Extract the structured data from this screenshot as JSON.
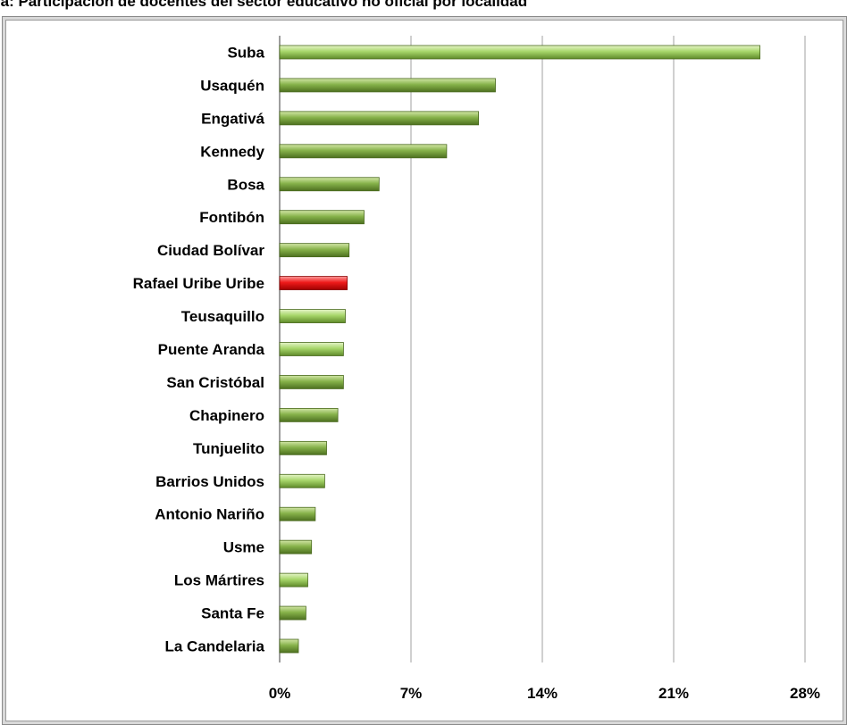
{
  "title": "ra: Participación de docentes del sector educativo no oficial por localidad",
  "colors": {
    "bar_light": "#93c750",
    "bar_dark": "#6f9a3a",
    "bar_highlight": "#e01010",
    "grid": "#a0a0a0"
  },
  "chart_data": {
    "type": "bar",
    "orientation": "horizontal",
    "title": "ra: Participación de docentes del sector educativo no oficial por localidad",
    "categories": [
      "Suba",
      "Usaquén",
      "Engativá",
      "Kennedy",
      "Bosa",
      "Fontibón",
      "Ciudad Bolívar",
      "Rafael Uribe Uribe",
      "Teusaquillo",
      "Puente Aranda",
      "San Cristóbal",
      "Chapinero",
      "Tunjuelito",
      "Barrios Unidos",
      "Antonio Nariño",
      "Usme",
      "Los Mártires",
      "Santa Fe",
      "La Candelaria"
    ],
    "values": [
      25.6,
      11.5,
      10.6,
      8.9,
      5.3,
      4.5,
      3.7,
      3.6,
      3.5,
      3.4,
      3.4,
      3.1,
      2.5,
      2.4,
      1.9,
      1.7,
      1.5,
      1.4,
      1.0
    ],
    "shades": [
      "light",
      "dark",
      "dark",
      "dark",
      "dark",
      "dark",
      "dark",
      "highlight",
      "light",
      "light",
      "dark",
      "dark",
      "dark",
      "light",
      "dark",
      "dark",
      "light",
      "dark",
      "dark"
    ],
    "xlim": [
      0,
      28
    ],
    "xticks": [
      "0%",
      "7%",
      "14%",
      "21%",
      "28%"
    ],
    "grid": true,
    "legend": "none"
  }
}
